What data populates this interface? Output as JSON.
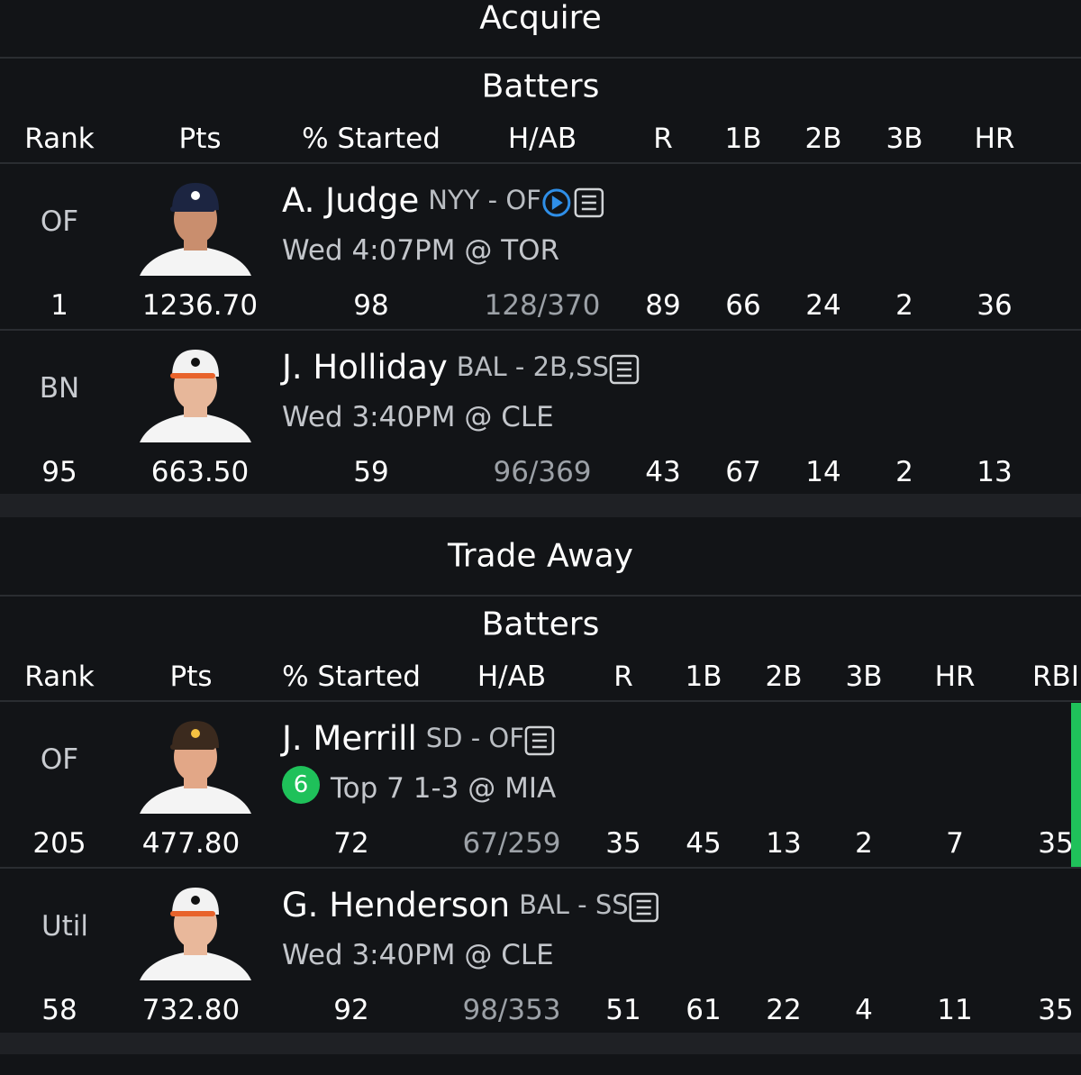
{
  "sections": [
    {
      "title": "Acquire",
      "group": "Batters",
      "columns": [
        "Rank",
        "Pts",
        "% Started",
        "H/AB",
        "R",
        "1B",
        "2B",
        "3B",
        "HR"
      ],
      "players": [
        {
          "position": "OF",
          "name": "A. Judge",
          "team_pos": "NYY - OF",
          "video": true,
          "game": "Wed 4:07PM @ TOR",
          "stats": [
            "1",
            "1236.70",
            "98",
            "128/370",
            "89",
            "66",
            "24",
            "2",
            "36"
          ]
        },
        {
          "position": "BN",
          "name": "J. Holliday",
          "team_pos": "BAL - 2B,SS",
          "game": "Wed 3:40PM @ CLE",
          "stats": [
            "95",
            "663.50",
            "59",
            "96/369",
            "43",
            "67",
            "14",
            "2",
            "13"
          ]
        }
      ]
    },
    {
      "title": "Trade Away",
      "group": "Batters",
      "columns": [
        "Rank",
        "Pts",
        "% Started",
        "H/AB",
        "R",
        "1B",
        "2B",
        "3B",
        "HR",
        "RBI"
      ],
      "players": [
        {
          "position": "OF",
          "name": "J. Merrill",
          "team_pos": "SD - OF",
          "badge": "6",
          "game": "Top 7 1-3 @ MIA",
          "stats": [
            "205",
            "477.80",
            "72",
            "67/259",
            "35",
            "45",
            "13",
            "2",
            "7",
            "35"
          ]
        },
        {
          "position": "Util",
          "name": "G. Henderson",
          "team_pos": "BAL - SS",
          "game": "Wed 3:40PM @ CLE",
          "stats": [
            "58",
            "732.80",
            "92",
            "98/353",
            "51",
            "61",
            "22",
            "4",
            "11",
            "35"
          ]
        }
      ]
    }
  ]
}
